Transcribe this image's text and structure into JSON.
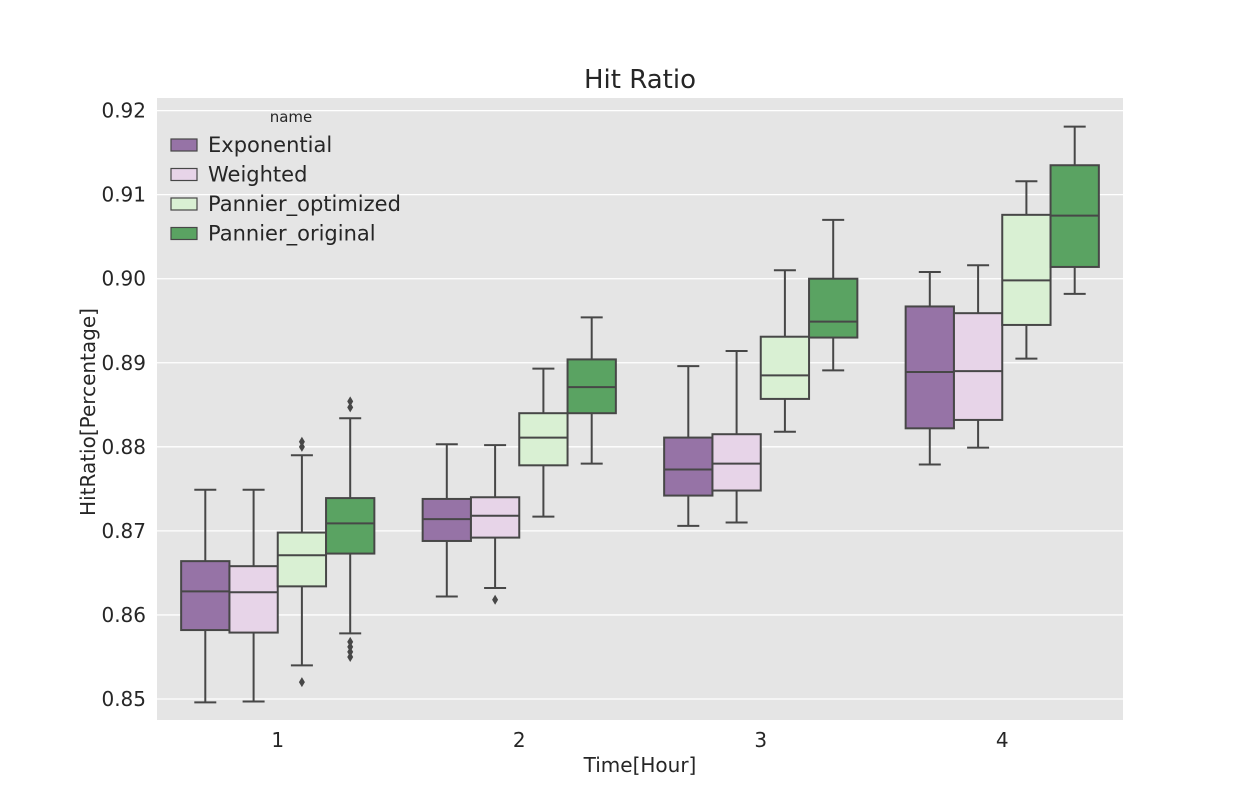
{
  "chart_data": {
    "type": "boxplot",
    "title": "Hit Ratio",
    "xlabel": "Time[Hour]",
    "ylabel": "HitRatio[Percentage]",
    "categories": [
      "1",
      "2",
      "3",
      "4"
    ],
    "ylim": [
      0.8475,
      0.9215
    ],
    "yticks": [
      "0.85",
      "0.86",
      "0.87",
      "0.88",
      "0.89",
      "0.90",
      "0.91",
      "0.92"
    ],
    "grid": true,
    "legend": {
      "title": "name",
      "position": "upper-left"
    },
    "series": [
      {
        "name": "Exponential",
        "color": "#9673a6",
        "boxes": [
          {
            "whisker_low": 0.8496,
            "q1": 0.8582,
            "median": 0.8628,
            "q3": 0.8664,
            "whisker_high": 0.8749,
            "outliers": []
          },
          {
            "whisker_low": 0.8622,
            "q1": 0.8688,
            "median": 0.8714,
            "q3": 0.8738,
            "whisker_high": 0.8803,
            "outliers": []
          },
          {
            "whisker_low": 0.8706,
            "q1": 0.8742,
            "median": 0.8773,
            "q3": 0.8811,
            "whisker_high": 0.8896,
            "outliers": []
          },
          {
            "whisker_low": 0.8779,
            "q1": 0.8822,
            "median": 0.8889,
            "q3": 0.8967,
            "whisker_high": 0.9008,
            "outliers": []
          }
        ]
      },
      {
        "name": "Weighted",
        "color": "#e7d4e8",
        "boxes": [
          {
            "whisker_low": 0.8497,
            "q1": 0.8579,
            "median": 0.8627,
            "q3": 0.8658,
            "whisker_high": 0.8749,
            "outliers": []
          },
          {
            "whisker_low": 0.8632,
            "q1": 0.8692,
            "median": 0.8718,
            "q3": 0.874,
            "whisker_high": 0.8802,
            "outliers": [
              0.8618
            ]
          },
          {
            "whisker_low": 0.871,
            "q1": 0.8748,
            "median": 0.878,
            "q3": 0.8815,
            "whisker_high": 0.8914,
            "outliers": []
          },
          {
            "whisker_low": 0.8799,
            "q1": 0.8832,
            "median": 0.889,
            "q3": 0.8959,
            "whisker_high": 0.9016,
            "outliers": []
          }
        ]
      },
      {
        "name": "Pannier_optimized",
        "color": "#d9f0d3",
        "boxes": [
          {
            "whisker_low": 0.854,
            "q1": 0.8634,
            "median": 0.8671,
            "q3": 0.8698,
            "whisker_high": 0.879,
            "outliers": [
              0.852,
              0.88,
              0.8806
            ]
          },
          {
            "whisker_low": 0.8717,
            "q1": 0.8778,
            "median": 0.8811,
            "q3": 0.884,
            "whisker_high": 0.8893,
            "outliers": []
          },
          {
            "whisker_low": 0.8818,
            "q1": 0.8857,
            "median": 0.8885,
            "q3": 0.8931,
            "whisker_high": 0.901,
            "outliers": []
          },
          {
            "whisker_low": 0.8905,
            "q1": 0.8945,
            "median": 0.8998,
            "q3": 0.9076,
            "whisker_high": 0.9116,
            "outliers": []
          }
        ]
      },
      {
        "name": "Pannier_original",
        "color": "#5aa362",
        "boxes": [
          {
            "whisker_low": 0.8578,
            "q1": 0.8673,
            "median": 0.8709,
            "q3": 0.8739,
            "whisker_high": 0.8834,
            "outliers": [
              0.855,
              0.8556,
              0.8562,
              0.8568,
              0.8847,
              0.8854
            ]
          },
          {
            "whisker_low": 0.878,
            "q1": 0.884,
            "median": 0.8871,
            "q3": 0.8904,
            "whisker_high": 0.8954,
            "outliers": []
          },
          {
            "whisker_low": 0.8891,
            "q1": 0.893,
            "median": 0.8949,
            "q3": 0.9,
            "whisker_high": 0.907,
            "outliers": []
          },
          {
            "whisker_low": 0.8982,
            "q1": 0.9014,
            "median": 0.9075,
            "q3": 0.9135,
            "whisker_high": 0.9181,
            "outliers": []
          }
        ]
      }
    ]
  }
}
